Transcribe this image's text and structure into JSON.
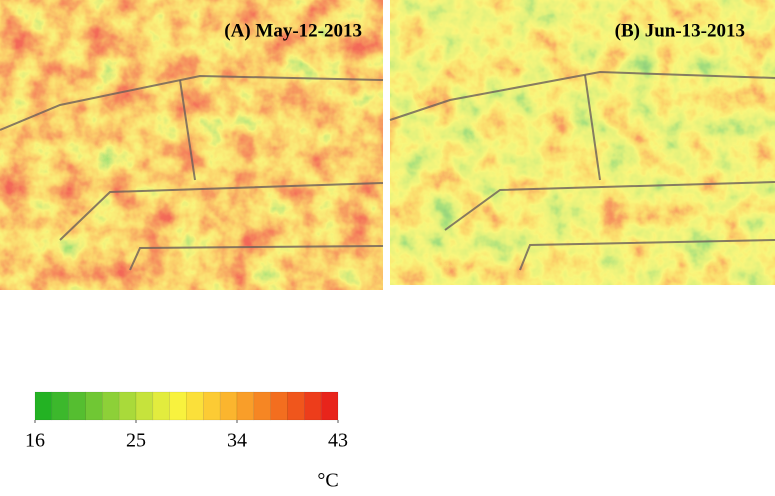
{
  "panels": [
    {
      "label": "(A) May-12-2013"
    },
    {
      "label": "(B) Jun-13-2013"
    }
  ],
  "colorbar": {
    "colors": [
      "#23b223",
      "#3cb82c",
      "#55be30",
      "#70c734",
      "#8dd038",
      "#a9da3a",
      "#c6e33c",
      "#e2ec3e",
      "#f8f23e",
      "#fbe03a",
      "#fccb34",
      "#fbb52e",
      "#f99e29",
      "#f68623",
      "#f36e1f",
      "#f0561c",
      "#ed3d1b",
      "#e8241b"
    ],
    "ticks": [
      16,
      25,
      34,
      43
    ],
    "lim": [
      16,
      43
    ],
    "unit": "°C"
  }
}
